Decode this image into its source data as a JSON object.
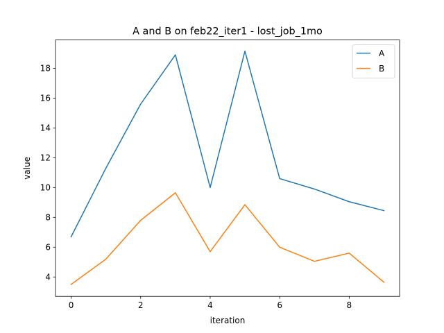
{
  "chart_data": {
    "type": "line",
    "title": "A and B on feb22_iter1 - lost_job_1mo",
    "xlabel": "iteration",
    "ylabel": "value",
    "x": [
      0,
      1,
      2,
      3,
      4,
      5,
      6,
      7,
      8,
      9
    ],
    "xlim": [
      -0.45,
      9.45
    ],
    "ylim": [
      2.7,
      19.9
    ],
    "xticks": [
      0,
      2,
      4,
      6,
      8
    ],
    "yticks": [
      4,
      6,
      8,
      10,
      12,
      14,
      16,
      18
    ],
    "grid": false,
    "legend": "top-right",
    "series": [
      {
        "name": "A",
        "color": "#1f77b4",
        "values": [
          6.7,
          11.3,
          15.6,
          18.9,
          10.0,
          19.15,
          10.6,
          9.9,
          9.05,
          8.45
        ]
      },
      {
        "name": "B",
        "color": "#ff7f0e",
        "values": [
          3.5,
          5.2,
          7.8,
          9.65,
          5.7,
          8.85,
          6.0,
          5.05,
          5.6,
          3.65
        ]
      }
    ]
  }
}
